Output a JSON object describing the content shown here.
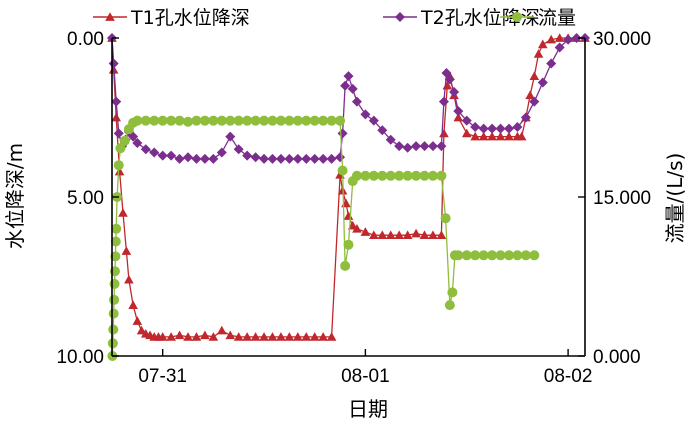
{
  "chart_data": {
    "type": "line",
    "title": "",
    "xlabel": "日期",
    "ylabel_left": "水位降深/m",
    "ylabel_right": "流量/(L/s)",
    "x_unit": "hours since 07-30 18:00",
    "xlim": [
      0,
      56
    ],
    "ylim_left": [
      0,
      10
    ],
    "ylim_right": [
      0,
      30
    ],
    "left_axis_inverted": true,
    "left_ticks": [
      "0.00",
      "5.00",
      "10.00"
    ],
    "left_tick_values": [
      0,
      5,
      10
    ],
    "right_ticks": [
      "0.000",
      "15.000",
      "30.000"
    ],
    "right_tick_values": [
      0,
      15,
      30
    ],
    "x_ticks": [
      {
        "label": "07-31",
        "value": 6
      },
      {
        "label": "08-01",
        "value": 30
      },
      {
        "label": "08-02",
        "value": 54
      }
    ],
    "legend": [
      {
        "name": "T1孔水位降深",
        "color": "#c0282d",
        "marker": "triangle"
      },
      {
        "name": "T2孔水位降深",
        "color": "#7b2e8e",
        "marker": "diamond"
      },
      {
        "name": "流量",
        "color": "#8fbd3c",
        "marker": "circle"
      }
    ],
    "series": [
      {
        "name": "T1孔水位降深",
        "axis": "left",
        "color": "#c0282d",
        "marker": "triangle",
        "x": [
          0.0,
          0.2,
          0.5,
          0.9,
          1.3,
          1.7,
          2.0,
          2.5,
          3.0,
          3.5,
          4.0,
          4.5,
          5.0,
          5.5,
          6.0,
          7.0,
          8.0,
          9.0,
          10.0,
          11.0,
          12.0,
          13.0,
          14.0,
          15.0,
          16.0,
          17.0,
          18.0,
          19.0,
          20.0,
          21.0,
          22.0,
          23.0,
          24.0,
          25.0,
          26.0,
          27.0,
          27.3,
          27.7,
          28.0,
          28.5,
          29.0,
          30.0,
          31.0,
          32.0,
          33.0,
          34.0,
          35.0,
          36.0,
          37.0,
          38.0,
          39.0,
          39.3,
          39.7,
          40.0,
          40.5,
          41.0,
          42.0,
          43.0,
          44.0,
          45.0,
          46.0,
          47.0,
          48.0,
          48.5,
          49.0,
          49.5,
          50.0,
          50.5,
          51.0,
          52.0,
          53.0,
          54.0,
          55.0,
          56.0
        ],
        "y": [
          0.0,
          1.0,
          2.5,
          4.2,
          5.5,
          6.7,
          7.6,
          8.4,
          8.9,
          9.2,
          9.3,
          9.35,
          9.4,
          9.4,
          9.4,
          9.4,
          9.35,
          9.4,
          9.4,
          9.35,
          9.4,
          9.2,
          9.35,
          9.4,
          9.4,
          9.4,
          9.4,
          9.4,
          9.4,
          9.4,
          9.4,
          9.4,
          9.4,
          9.4,
          9.4,
          4.3,
          4.8,
          5.2,
          5.6,
          5.9,
          6.0,
          6.1,
          6.2,
          6.2,
          6.2,
          6.2,
          6.2,
          6.15,
          6.2,
          6.2,
          6.2,
          3.0,
          1.5,
          1.2,
          1.8,
          2.5,
          3.0,
          3.1,
          3.1,
          3.1,
          3.1,
          3.1,
          3.1,
          3.1,
          2.5,
          1.8,
          1.2,
          0.5,
          0.2,
          0.05,
          0.0,
          0.0,
          0.0,
          0.0
        ]
      },
      {
        "name": "T2孔水位降深",
        "axis": "left",
        "color": "#7b2e8e",
        "marker": "diamond",
        "x": [
          0.0,
          0.2,
          0.5,
          0.8,
          1.2,
          1.6,
          2.0,
          2.5,
          3.0,
          4.0,
          5.0,
          6.0,
          7.0,
          8.0,
          9.0,
          10.0,
          11.0,
          12.0,
          13.0,
          14.0,
          15.0,
          16.0,
          17.0,
          18.0,
          19.0,
          20.0,
          21.0,
          22.0,
          23.0,
          24.0,
          25.0,
          26.0,
          27.0,
          27.3,
          27.6,
          28.0,
          28.5,
          29.0,
          30.0,
          31.0,
          32.0,
          33.0,
          34.0,
          35.0,
          36.0,
          37.0,
          38.0,
          39.0,
          39.3,
          39.6,
          40.0,
          40.5,
          41.0,
          42.0,
          43.0,
          44.0,
          45.0,
          46.0,
          47.0,
          48.0,
          49.0,
          50.0,
          51.0,
          52.0,
          53.0,
          54.0,
          55.0,
          56.0
        ],
        "y": [
          0.0,
          0.8,
          2.0,
          3.0,
          3.4,
          3.2,
          2.95,
          3.1,
          3.3,
          3.5,
          3.6,
          3.7,
          3.7,
          3.8,
          3.75,
          3.8,
          3.8,
          3.8,
          3.6,
          3.1,
          3.5,
          3.7,
          3.75,
          3.8,
          3.8,
          3.8,
          3.8,
          3.8,
          3.8,
          3.8,
          3.8,
          3.8,
          3.75,
          3.0,
          1.5,
          1.2,
          1.6,
          2.0,
          2.4,
          2.6,
          2.9,
          3.2,
          3.4,
          3.45,
          3.4,
          3.4,
          3.4,
          3.4,
          2.0,
          1.1,
          1.3,
          1.7,
          2.3,
          2.6,
          2.8,
          2.85,
          2.85,
          2.85,
          2.85,
          2.8,
          2.5,
          2.0,
          1.4,
          0.8,
          0.3,
          0.05,
          0.0,
          0.0
        ]
      },
      {
        "name": "流量",
        "axis": "right",
        "color": "#8fbd3c",
        "marker": "circle",
        "x": [
          0.05,
          0.1,
          0.15,
          0.2,
          0.25,
          0.3,
          0.35,
          0.4,
          0.45,
          0.5,
          0.6,
          0.8,
          1.0,
          1.5,
          2.0,
          2.5,
          3.0,
          4.0,
          5.0,
          6.0,
          7.0,
          8.0,
          9.0,
          10.0,
          11.0,
          12.0,
          13.0,
          14.0,
          15.0,
          16.0,
          17.0,
          18.0,
          19.0,
          20.0,
          21.0,
          22.0,
          23.0,
          24.0,
          25.0,
          26.0,
          27.0,
          27.3,
          27.6,
          28.0,
          28.5,
          29.0,
          30.0,
          31.0,
          32.0,
          33.0,
          34.0,
          35.0,
          36.0,
          37.0,
          38.0,
          39.0,
          39.5,
          40.0,
          40.3,
          40.6,
          41.0,
          42.0,
          43.0,
          44.0,
          45.0,
          46.0,
          47.0,
          48.0,
          49.0,
          50.0
        ],
        "y": [
          0.0,
          1.2,
          2.5,
          4.0,
          5.3,
          6.8,
          8.0,
          9.4,
          10.8,
          12.0,
          15.0,
          18.0,
          19.6,
          20.3,
          21.4,
          22.0,
          22.2,
          22.2,
          22.2,
          22.2,
          22.2,
          22.2,
          22.1,
          22.2,
          22.2,
          22.2,
          22.2,
          22.2,
          22.2,
          22.2,
          22.2,
          22.2,
          22.2,
          22.2,
          22.2,
          22.2,
          22.2,
          22.2,
          22.2,
          22.2,
          22.2,
          17.5,
          8.5,
          10.5,
          16.5,
          17.0,
          17.0,
          17.0,
          17.0,
          17.0,
          17.0,
          17.0,
          17.0,
          17.0,
          17.0,
          17.0,
          13.0,
          4.8,
          6.0,
          9.5,
          9.5,
          9.5,
          9.5,
          9.5,
          9.5,
          9.5,
          9.5,
          9.5,
          9.5,
          9.5
        ]
      }
    ]
  }
}
